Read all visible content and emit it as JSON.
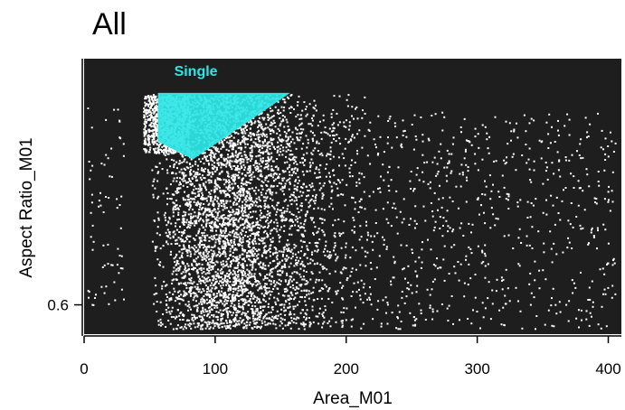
{
  "title": "All",
  "chart_data": {
    "type": "scatter",
    "title": "All",
    "xlabel": "Area_M01",
    "ylabel": "Aspect Ratio_M01",
    "xlim": [
      0,
      410
    ],
    "ylim": [
      0.55,
      1.02
    ],
    "x_ticks": [
      {
        "value": 0,
        "label": "0"
      },
      {
        "value": 100,
        "label": "100"
      },
      {
        "value": 200,
        "label": "200"
      },
      {
        "value": 300,
        "label": "300"
      },
      {
        "value": 400,
        "label": "400"
      }
    ],
    "y_ticks": [
      {
        "value": 0.6,
        "label": "0.6"
      }
    ],
    "background": "#1e1e1e",
    "point_color": "#ffffff",
    "gates": [
      {
        "name": "Single",
        "color": "#2fe6e6",
        "vertices": [
          [
            57,
            0.96
          ],
          [
            155,
            0.96
          ],
          [
            83,
            0.85
          ],
          [
            57,
            0.88
          ]
        ]
      }
    ]
  }
}
